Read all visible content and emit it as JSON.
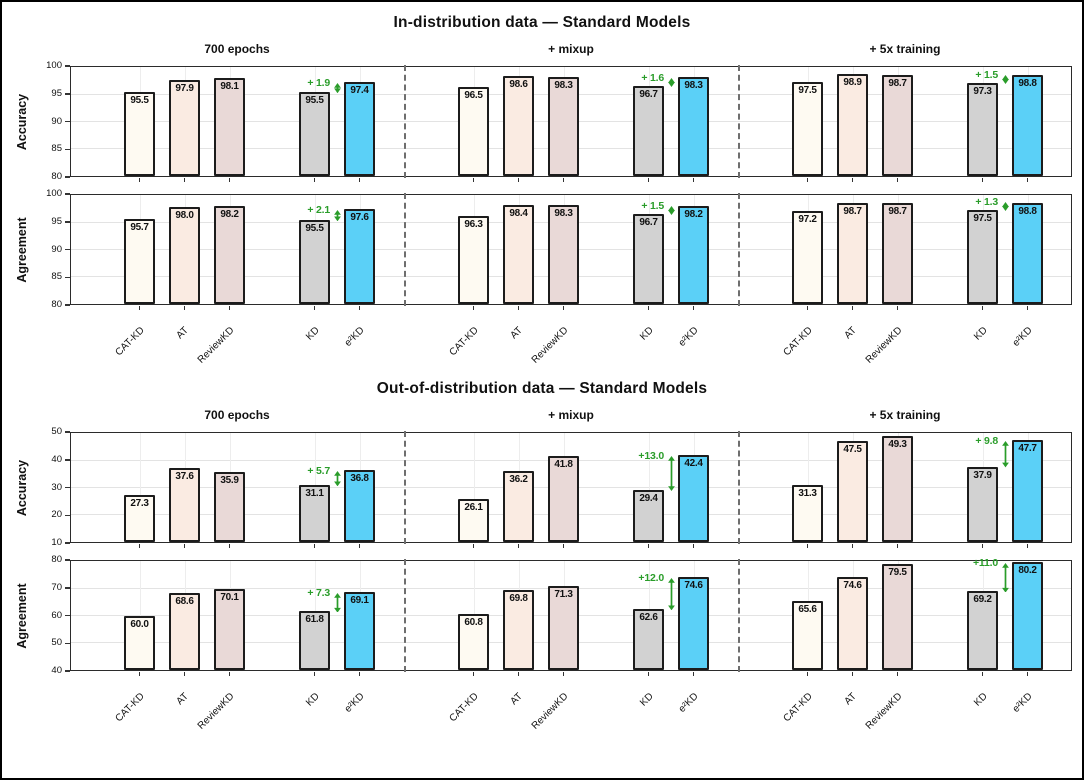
{
  "figure": {
    "bar_colors": [
      "#FEFAF2",
      "#FAEBE2",
      "#E9D9D7",
      "#D2D2D2",
      "#5BD0F7"
    ],
    "bar_border_color": "#1c1c1c",
    "delta_color": "#2A9D2A",
    "separator_color": "#6e6e6e"
  },
  "chart_data": [
    {
      "type": "bar",
      "title": "In-distribution data — Standard Models",
      "groups": [
        "700 epochs",
        "+ mixup",
        "+ 5x training"
      ],
      "categories": [
        "CAT-KD",
        "AT",
        "ReviewKD",
        "KD",
        "e²KD"
      ],
      "legend_position": "none",
      "grid": true,
      "rows": [
        {
          "ylabel": "Accuracy",
          "ylim": [
            80,
            100
          ],
          "yticks": [
            80,
            85,
            90,
            95,
            100
          ],
          "values": [
            [
              95.5,
              97.9,
              98.1,
              95.5,
              97.4
            ],
            [
              96.5,
              98.6,
              98.3,
              96.7,
              98.3
            ],
            [
              97.5,
              98.9,
              98.7,
              97.3,
              98.8
            ]
          ],
          "deltas": [
            "+ 1.9",
            "+ 1.6",
            "+ 1.5"
          ]
        },
        {
          "ylabel": "Agreement",
          "ylim": [
            80,
            100
          ],
          "yticks": [
            80,
            85,
            90,
            95,
            100
          ],
          "values": [
            [
              95.7,
              98.0,
              98.2,
              95.5,
              97.6
            ],
            [
              96.3,
              98.4,
              98.3,
              96.7,
              98.2
            ],
            [
              97.2,
              98.7,
              98.7,
              97.5,
              98.8
            ]
          ],
          "deltas": [
            "+ 2.1",
            "+ 1.5",
            "+ 1.3"
          ]
        }
      ]
    },
    {
      "type": "bar",
      "title": "Out-of-distribution data — Standard Models",
      "groups": [
        "700 epochs",
        "+ mixup",
        "+ 5x training"
      ],
      "categories": [
        "CAT-KD",
        "AT",
        "ReviewKD",
        "KD",
        "e²KD"
      ],
      "legend_position": "none",
      "grid": true,
      "rows": [
        {
          "ylabel": "Accuracy",
          "ylim": [
            10,
            50
          ],
          "yticks": [
            10,
            20,
            30,
            40,
            50
          ],
          "values": [
            [
              27.3,
              37.6,
              35.9,
              31.1,
              36.8
            ],
            [
              26.1,
              36.2,
              41.8,
              29.4,
              42.4
            ],
            [
              31.3,
              47.5,
              49.3,
              37.9,
              47.7
            ]
          ],
          "deltas": [
            "+ 5.7",
            "+13.0",
            "+ 9.8"
          ]
        },
        {
          "ylabel": "Agreement",
          "ylim": [
            40,
            80
          ],
          "yticks": [
            40,
            50,
            60,
            70,
            80
          ],
          "values": [
            [
              60.0,
              68.6,
              70.1,
              61.8,
              69.1
            ],
            [
              60.8,
              69.8,
              71.3,
              62.6,
              74.6
            ],
            [
              65.6,
              74.6,
              79.5,
              69.2,
              80.2
            ]
          ],
          "deltas": [
            "+ 7.3",
            "+12.0",
            "+11.0"
          ]
        }
      ]
    }
  ]
}
